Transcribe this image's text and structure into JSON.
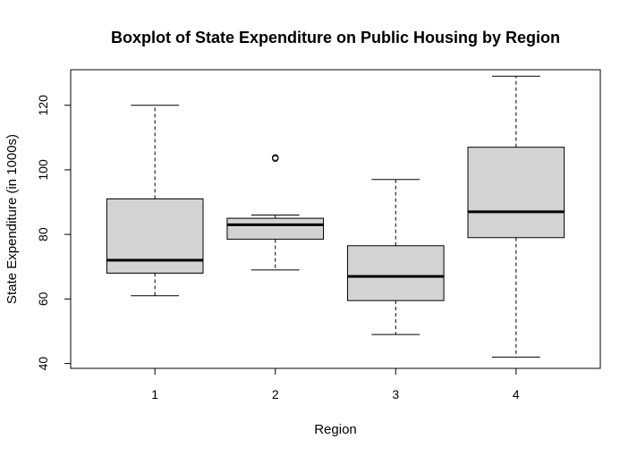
{
  "chart_data": {
    "type": "boxplot",
    "title": "Boxplot of State Expenditure on Public Housing by Region",
    "xlabel": "Region",
    "ylabel": "State Expenditure (in 1000s)",
    "categories": [
      "1",
      "2",
      "3",
      "4"
    ],
    "yticks": [
      40,
      60,
      80,
      100,
      120
    ],
    "ylim": [
      38.5,
      131
    ],
    "boxes": [
      {
        "category": "1",
        "whisker_low": 61,
        "q1": 68,
        "median": 72,
        "q3": 91,
        "whisker_high": 120,
        "outliers": []
      },
      {
        "category": "2",
        "whisker_low": 69,
        "q1": 78.5,
        "median": 83,
        "q3": 85,
        "whisker_high": 86,
        "outliers": [
          103.5,
          103.8
        ]
      },
      {
        "category": "3",
        "whisker_low": 49,
        "q1": 59.5,
        "median": 67,
        "q3": 76.5,
        "whisker_high": 97,
        "outliers": []
      },
      {
        "category": "4",
        "whisker_low": 42,
        "q1": 79,
        "median": 87,
        "q3": 107,
        "whisker_high": 129,
        "outliers": []
      }
    ],
    "box_fill": "#d3d3d3",
    "grid": false,
    "legend": "none"
  }
}
